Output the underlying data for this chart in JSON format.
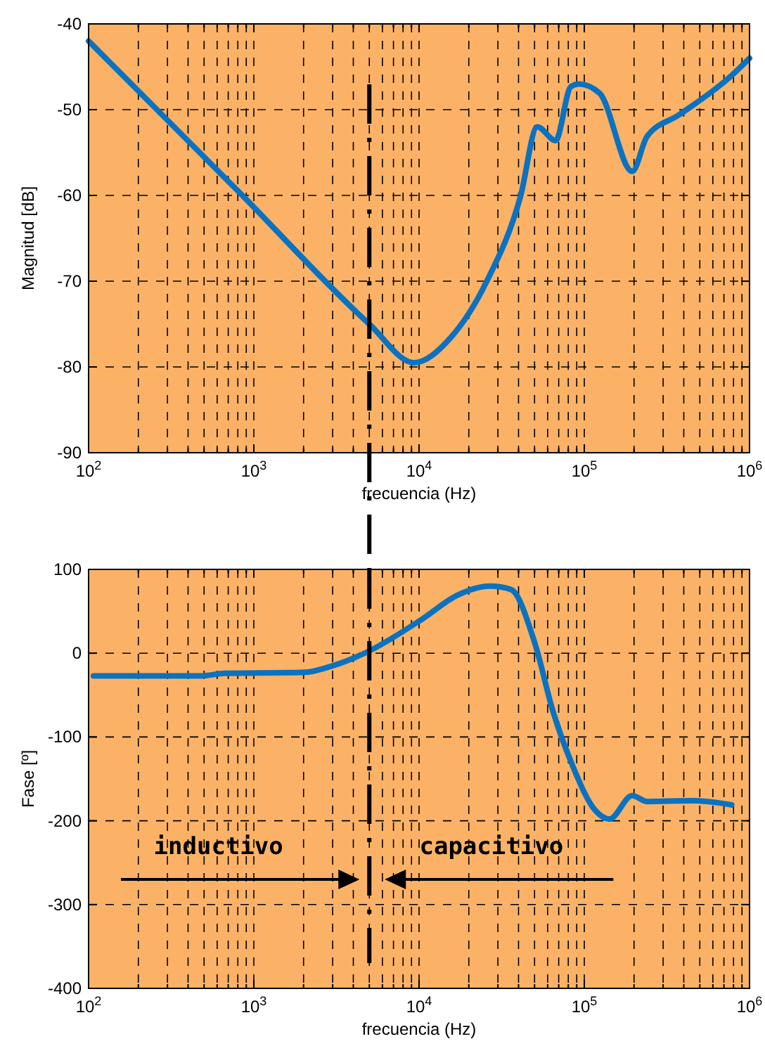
{
  "chart_data": [
    {
      "type": "line",
      "ylabel": "Magnitud [dB]",
      "xlabel": "frecuencia (Hz)",
      "log": "x",
      "grid": true,
      "line_style": "solid",
      "xlim": [
        100,
        1000000
      ],
      "ylim": [
        -90,
        -40
      ],
      "xticks": [
        {
          "value": 100,
          "label": "10$^{2}$"
        },
        {
          "value": 200,
          "label": null
        },
        {
          "value": 300,
          "label": null
        },
        {
          "value": 400,
          "label": null
        },
        {
          "value": 500,
          "label": null
        },
        {
          "value": 600,
          "label": null
        },
        {
          "value": 700,
          "label": null
        },
        {
          "value": 800,
          "label": null
        },
        {
          "value": 900,
          "label": null
        },
        {
          "value": 1000,
          "label": "10$^{3}$"
        },
        {
          "value": 2000,
          "label": null
        },
        {
          "value": 3000,
          "label": null
        },
        {
          "value": 4000,
          "label": null
        },
        {
          "value": 5000,
          "label": null
        },
        {
          "value": 6000,
          "label": null
        },
        {
          "value": 7000,
          "label": null
        },
        {
          "value": 8000,
          "label": null
        },
        {
          "value": 9000,
          "label": null
        },
        {
          "value": 10000,
          "label": "10$^{4}$"
        },
        {
          "value": 20000,
          "label": null
        },
        {
          "value": 30000,
          "label": null
        },
        {
          "value": 40000,
          "label": null
        },
        {
          "value": 50000,
          "label": null
        },
        {
          "value": 60000,
          "label": null
        },
        {
          "value": 70000,
          "label": null
        },
        {
          "value": 80000,
          "label": null
        },
        {
          "value": 90000,
          "label": null
        },
        {
          "value": 100000,
          "label": "10$^{5}$"
        },
        {
          "value": 200000,
          "label": null
        },
        {
          "value": 300000,
          "label": null
        },
        {
          "value": 400000,
          "label": null
        },
        {
          "value": 500000,
          "label": null
        },
        {
          "value": 600000,
          "label": null
        },
        {
          "value": 700000,
          "label": null
        },
        {
          "value": 800000,
          "label": null
        },
        {
          "value": 900000,
          "label": null
        },
        {
          "value": 1000000,
          "label": "10$^{6}$"
        }
      ],
      "yticks": [
        -90,
        -80,
        -70,
        -60,
        -50,
        -40
      ],
      "ref_lines": [
        {
          "axis": "x",
          "value": 5000,
          "color": "#000000"
        }
      ],
      "series": [
        {
          "color": "#0a72c0",
          "x": [
            100,
            813,
            5000,
            9300,
            15500,
            25700,
            41000,
            52000,
            67000,
            83000,
            93000,
            124000,
            195000,
            240000,
            375000,
            780000,
            1000000
          ],
          "values": [
            -42,
            -59.6,
            -75,
            -79.5,
            -76.6,
            -70,
            -60.2,
            -52,
            -53.6,
            -47.3,
            -47,
            -48.1,
            -57.2,
            -53.1,
            -50.6,
            -46,
            -44
          ]
        }
      ]
    },
    {
      "type": "line",
      "ylabel": "Fase [º]",
      "xlabel": "frecuencia (Hz)",
      "log": "x",
      "grid": true,
      "line_style": "solid",
      "xlim": [
        100,
        1000000
      ],
      "ylim": [
        -400,
        100
      ],
      "xticks": [
        {
          "value": 100,
          "label": "10$^{2}$"
        },
        {
          "value": 200,
          "label": null
        },
        {
          "value": 300,
          "label": null
        },
        {
          "value": 400,
          "label": null
        },
        {
          "value": 500,
          "label": null
        },
        {
          "value": 600,
          "label": null
        },
        {
          "value": 700,
          "label": null
        },
        {
          "value": 800,
          "label": null
        },
        {
          "value": 900,
          "label": null
        },
        {
          "value": 1000,
          "label": "10$^{3}$"
        },
        {
          "value": 2000,
          "label": null
        },
        {
          "value": 3000,
          "label": null
        },
        {
          "value": 4000,
          "label": null
        },
        {
          "value": 5000,
          "label": null
        },
        {
          "value": 6000,
          "label": null
        },
        {
          "value": 7000,
          "label": null
        },
        {
          "value": 8000,
          "label": null
        },
        {
          "value": 9000,
          "label": null
        },
        {
          "value": 10000,
          "label": "10$^{4}$"
        },
        {
          "value": 20000,
          "label": null
        },
        {
          "value": 30000,
          "label": null
        },
        {
          "value": 40000,
          "label": null
        },
        {
          "value": 50000,
          "label": null
        },
        {
          "value": 60000,
          "label": null
        },
        {
          "value": 70000,
          "label": null
        },
        {
          "value": 80000,
          "label": null
        },
        {
          "value": 90000,
          "label": null
        },
        {
          "value": 100000,
          "label": "10$^{5}$"
        },
        {
          "value": 200000,
          "label": null
        },
        {
          "value": 300000,
          "label": null
        },
        {
          "value": 400000,
          "label": null
        },
        {
          "value": 500000,
          "label": null
        },
        {
          "value": 600000,
          "label": null
        },
        {
          "value": 700000,
          "label": null
        },
        {
          "value": 800000,
          "label": null
        },
        {
          "value": 900000,
          "label": null
        },
        {
          "value": 1000000,
          "label": "10$^{6}$"
        }
      ],
      "yticks": [
        -400,
        -300,
        -200,
        -100,
        0,
        100
      ],
      "ref_lines": [
        {
          "axis": "x",
          "value": 5000,
          "color": "#000000"
        }
      ],
      "annotations": [
        "inductivo",
        "capacitivo"
      ],
      "series": [
        {
          "color": "#0a72c0",
          "x": [
            107,
            480,
            670,
            2000,
            3000,
            4800,
            10500,
            17000,
            27000,
            36000,
            50000,
            65000,
            84000,
            117000,
            142000,
            195000,
            240000,
            460000,
            780000
          ],
          "values": [
            -27,
            -27,
            -24,
            -23,
            -15,
            1,
            41,
            69,
            80,
            76,
            13,
            -71,
            -132,
            -188,
            -198,
            -170,
            -177,
            -176,
            -181
          ]
        }
      ]
    }
  ]
}
